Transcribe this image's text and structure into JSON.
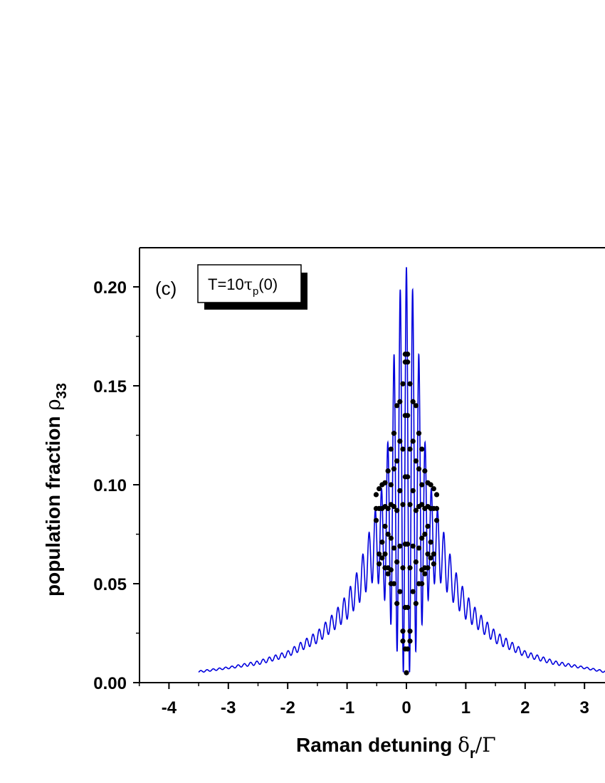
{
  "chart_data": {
    "type": "line",
    "panel_label": "(c)",
    "annotation": {
      "prefix": "T=10",
      "symbol": "τ",
      "subscript": "p",
      "suffix": "(0)"
    },
    "xlabel": {
      "text": "Raman detuning ",
      "symbol": "δ",
      "subscript": "r",
      "suffix": "/Γ"
    },
    "ylabel": {
      "text": "population fraction ",
      "symbol": "ρ",
      "subscript": "33"
    },
    "xlim": [
      -4.5,
      3.35
    ],
    "ylim": [
      0.0,
      0.22
    ],
    "x_ticks": [
      "-4",
      "-3",
      "-2",
      "-1",
      "0",
      "1",
      "2",
      "3"
    ],
    "y_ticks": [
      "0.00",
      "0.05",
      "0.10",
      "0.15",
      "0.20"
    ],
    "series": [
      {
        "kind": "line",
        "color": "#0000dd",
        "x_range": [
          -3.5,
          3.35
        ],
        "envelope_upper": [
          [
            -3.5,
            0.006
          ],
          [
            -3.0,
            0.008
          ],
          [
            -2.5,
            0.011
          ],
          [
            -2.0,
            0.016
          ],
          [
            -1.5,
            0.026
          ],
          [
            -1.2,
            0.036
          ],
          [
            -1.0,
            0.045
          ],
          [
            -0.8,
            0.058
          ],
          [
            -0.6,
            0.079
          ],
          [
            -0.5,
            0.09
          ],
          [
            -0.4,
            0.1
          ],
          [
            -0.3,
            0.125
          ],
          [
            -0.2,
            0.17
          ],
          [
            -0.1,
            0.2
          ],
          [
            0.0,
            0.21
          ],
          [
            0.1,
            0.2
          ],
          [
            0.2,
            0.17
          ],
          [
            0.3,
            0.125
          ],
          [
            0.4,
            0.1
          ],
          [
            0.5,
            0.09
          ],
          [
            0.6,
            0.079
          ],
          [
            0.8,
            0.058
          ],
          [
            1.0,
            0.045
          ],
          [
            1.2,
            0.036
          ],
          [
            1.5,
            0.026
          ],
          [
            2.0,
            0.016
          ],
          [
            2.5,
            0.011
          ],
          [
            3.0,
            0.008
          ],
          [
            3.35,
            0.006
          ]
        ],
        "envelope_lower": [
          [
            -3.5,
            0.005
          ],
          [
            -3.0,
            0.007
          ],
          [
            -2.5,
            0.009
          ],
          [
            -2.0,
            0.013
          ],
          [
            -1.5,
            0.02
          ],
          [
            -1.2,
            0.027
          ],
          [
            -1.0,
            0.032
          ],
          [
            -0.8,
            0.04
          ],
          [
            -0.6,
            0.05
          ],
          [
            -0.5,
            0.052
          ],
          [
            -0.4,
            0.045
          ],
          [
            -0.3,
            0.035
          ],
          [
            -0.2,
            0.02
          ],
          [
            -0.1,
            0.01
          ],
          [
            0.0,
            0.0
          ],
          [
            0.1,
            0.01
          ],
          [
            0.2,
            0.02
          ],
          [
            0.3,
            0.035
          ],
          [
            0.4,
            0.045
          ],
          [
            0.5,
            0.052
          ],
          [
            0.6,
            0.05
          ],
          [
            0.8,
            0.04
          ],
          [
            1.0,
            0.032
          ],
          [
            1.2,
            0.027
          ],
          [
            1.5,
            0.02
          ],
          [
            2.0,
            0.013
          ],
          [
            2.5,
            0.009
          ],
          [
            3.0,
            0.007
          ],
          [
            3.35,
            0.005
          ]
        ],
        "oscillation_period": 0.105
      },
      {
        "kind": "scatter",
        "color": "#000000",
        "points": [
          [
            -0.51,
            0.095
          ],
          [
            -0.51,
            0.088
          ],
          [
            -0.51,
            0.082
          ],
          [
            -0.46,
            0.098
          ],
          [
            -0.46,
            0.088
          ],
          [
            -0.46,
            0.065
          ],
          [
            -0.46,
            0.06
          ],
          [
            -0.41,
            0.1
          ],
          [
            -0.41,
            0.088
          ],
          [
            -0.41,
            0.071
          ],
          [
            -0.41,
            0.063
          ],
          [
            -0.36,
            0.101
          ],
          [
            -0.36,
            0.089
          ],
          [
            -0.36,
            0.079
          ],
          [
            -0.36,
            0.065
          ],
          [
            -0.36,
            0.058
          ],
          [
            -0.31,
            0.107
          ],
          [
            -0.31,
            0.088
          ],
          [
            -0.31,
            0.075
          ],
          [
            -0.31,
            0.058
          ],
          [
            -0.31,
            0.055
          ],
          [
            -0.26,
            0.118
          ],
          [
            -0.26,
            0.1
          ],
          [
            -0.26,
            0.09
          ],
          [
            -0.26,
            0.073
          ],
          [
            -0.26,
            0.057
          ],
          [
            -0.26,
            0.05
          ],
          [
            -0.21,
            0.126
          ],
          [
            -0.21,
            0.108
          ],
          [
            -0.21,
            0.089
          ],
          [
            -0.21,
            0.068
          ],
          [
            -0.21,
            0.05
          ],
          [
            -0.16,
            0.14
          ],
          [
            -0.16,
            0.112
          ],
          [
            -0.16,
            0.087
          ],
          [
            -0.16,
            0.061
          ],
          [
            -0.16,
            0.04
          ],
          [
            -0.11,
            0.142
          ],
          [
            -0.11,
            0.122
          ],
          [
            -0.11,
            0.097
          ],
          [
            -0.11,
            0.069
          ],
          [
            -0.11,
            0.046
          ],
          [
            -0.06,
            0.151
          ],
          [
            -0.06,
            0.118
          ],
          [
            -0.06,
            0.09
          ],
          [
            -0.06,
            0.058
          ],
          [
            -0.06,
            0.026
          ],
          [
            -0.06,
            0.021
          ],
          [
            -0.02,
            0.166
          ],
          [
            -0.02,
            0.162
          ],
          [
            -0.02,
            0.135
          ],
          [
            -0.02,
            0.104
          ],
          [
            -0.02,
            0.07
          ],
          [
            -0.02,
            0.038
          ],
          [
            -0.02,
            0.017
          ],
          [
            0.0,
            0.005
          ],
          [
            0.02,
            0.166
          ],
          [
            0.02,
            0.162
          ],
          [
            0.02,
            0.135
          ],
          [
            0.02,
            0.104
          ],
          [
            0.02,
            0.07
          ],
          [
            0.02,
            0.038
          ],
          [
            0.02,
            0.017
          ],
          [
            0.06,
            0.151
          ],
          [
            0.06,
            0.118
          ],
          [
            0.06,
            0.09
          ],
          [
            0.06,
            0.058
          ],
          [
            0.06,
            0.026
          ],
          [
            0.06,
            0.021
          ],
          [
            0.11,
            0.142
          ],
          [
            0.11,
            0.122
          ],
          [
            0.11,
            0.097
          ],
          [
            0.11,
            0.069
          ],
          [
            0.11,
            0.046
          ],
          [
            0.16,
            0.14
          ],
          [
            0.16,
            0.112
          ],
          [
            0.16,
            0.087
          ],
          [
            0.16,
            0.061
          ],
          [
            0.16,
            0.04
          ],
          [
            0.21,
            0.126
          ],
          [
            0.21,
            0.108
          ],
          [
            0.21,
            0.089
          ],
          [
            0.21,
            0.068
          ],
          [
            0.21,
            0.05
          ],
          [
            0.26,
            0.118
          ],
          [
            0.26,
            0.1
          ],
          [
            0.26,
            0.09
          ],
          [
            0.26,
            0.073
          ],
          [
            0.26,
            0.057
          ],
          [
            0.26,
            0.05
          ],
          [
            0.31,
            0.107
          ],
          [
            0.31,
            0.088
          ],
          [
            0.31,
            0.075
          ],
          [
            0.31,
            0.058
          ],
          [
            0.31,
            0.055
          ],
          [
            0.36,
            0.101
          ],
          [
            0.36,
            0.089
          ],
          [
            0.36,
            0.079
          ],
          [
            0.36,
            0.065
          ],
          [
            0.36,
            0.058
          ],
          [
            0.41,
            0.1
          ],
          [
            0.41,
            0.088
          ],
          [
            0.41,
            0.071
          ],
          [
            0.41,
            0.063
          ],
          [
            0.46,
            0.098
          ],
          [
            0.46,
            0.088
          ],
          [
            0.46,
            0.065
          ],
          [
            0.46,
            0.06
          ],
          [
            0.51,
            0.095
          ],
          [
            0.51,
            0.088
          ],
          [
            0.51,
            0.082
          ]
        ]
      }
    ]
  }
}
